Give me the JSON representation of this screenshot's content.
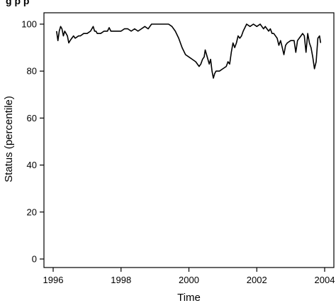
{
  "chart_data": {
    "type": "line",
    "title": "",
    "xlabel": "Time",
    "ylabel": "Status (percentile)",
    "xlim": [
      1996,
      2004
    ],
    "ylim": [
      -2,
      104
    ],
    "xticks": [
      1996,
      1998,
      2000,
      2002,
      2004
    ],
    "yticks": [
      0,
      20,
      40,
      60,
      80,
      100
    ],
    "grid": false,
    "series": [
      {
        "color": "#000000",
        "x": [
          1996.1,
          1996.14,
          1996.18,
          1996.22,
          1996.26,
          1996.3,
          1996.34,
          1996.38,
          1996.42,
          1996.46,
          1996.5,
          1996.55,
          1996.6,
          1996.65,
          1996.7,
          1996.75,
          1996.8,
          1996.9,
          1997.0,
          1997.1,
          1997.18,
          1997.22,
          1997.26,
          1997.3,
          1997.4,
          1997.5,
          1997.6,
          1997.65,
          1997.7,
          1997.8,
          1997.9,
          1998.0,
          1998.1,
          1998.2,
          1998.3,
          1998.4,
          1998.5,
          1998.6,
          1998.7,
          1998.8,
          1998.85,
          1998.9,
          1999.0,
          1999.2,
          1999.4,
          1999.5,
          1999.6,
          1999.7,
          1999.8,
          1999.9,
          2000.0,
          2000.1,
          2000.2,
          2000.3,
          2000.35,
          2000.4,
          2000.45,
          2000.48,
          2000.52,
          2000.56,
          2000.6,
          2000.64,
          2000.68,
          2000.72,
          2000.76,
          2000.8,
          2000.9,
          2001.0,
          2001.1,
          2001.15,
          2001.2,
          2001.25,
          2001.3,
          2001.35,
          2001.4,
          2001.45,
          2001.5,
          2001.55,
          2001.6,
          2001.7,
          2001.8,
          2001.9,
          2002.0,
          2002.1,
          2002.15,
          2002.2,
          2002.25,
          2002.3,
          2002.35,
          2002.4,
          2002.45,
          2002.5,
          2002.55,
          2002.6,
          2002.65,
          2002.7,
          2002.75,
          2002.8,
          2002.85,
          2002.9,
          2003.0,
          2003.1,
          2003.15,
          2003.2,
          2003.25,
          2003.3,
          2003.35,
          2003.4,
          2003.45,
          2003.5,
          2003.55,
          2003.6,
          2003.65,
          2003.7,
          2003.75,
          2003.8,
          2003.85,
          2003.88
        ],
        "y": [
          97,
          93,
          97,
          99,
          98,
          95,
          97,
          96,
          95,
          92,
          93,
          94,
          95,
          94,
          94.5,
          95,
          95,
          96,
          96,
          97,
          99,
          97,
          97,
          96,
          96,
          97,
          97,
          98.5,
          97,
          97,
          97,
          97,
          98,
          98,
          97,
          98,
          97,
          98,
          99,
          98,
          99,
          100,
          100,
          100,
          100,
          99,
          97,
          94,
          90,
          87,
          86,
          85,
          84,
          82,
          83,
          85,
          86,
          89,
          87,
          85,
          83,
          85,
          80,
          77,
          79,
          80,
          80,
          81,
          82,
          84,
          83,
          88,
          92,
          90,
          92,
          95,
          94,
          95,
          97,
          100,
          99,
          100,
          99,
          100,
          99,
          98,
          99,
          98,
          97,
          98,
          96,
          96,
          95,
          94,
          91,
          93,
          90,
          87,
          91,
          92,
          93,
          93,
          88,
          93,
          94,
          95,
          96,
          95,
          88,
          96,
          92,
          90,
          86,
          81,
          84,
          94,
          95,
          92
        ]
      }
    ]
  },
  "cut_title": "g                 p   p"
}
